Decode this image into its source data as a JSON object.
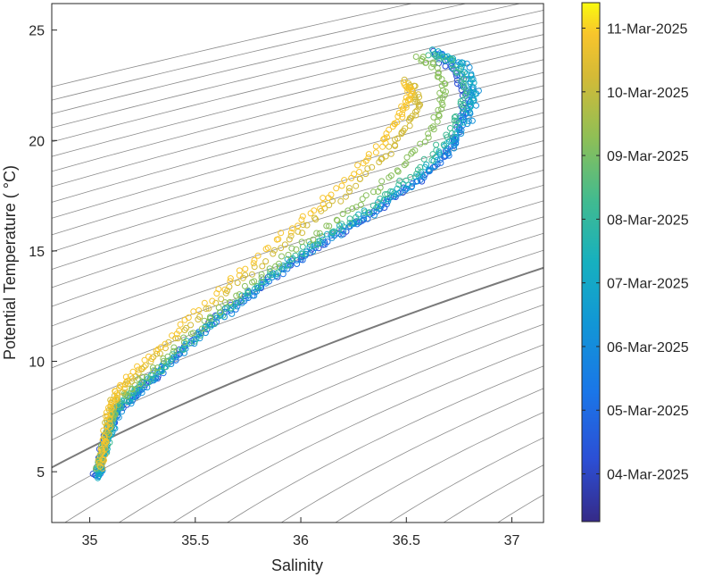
{
  "chart_data": {
    "type": "scatter",
    "xlabel": "Salinity",
    "ylabel": "Potential Temperature ( °C)",
    "xlim": [
      34.82,
      37.15
    ],
    "ylim": [
      2.7,
      26.2
    ],
    "xticks": [
      35,
      35.5,
      36,
      36.5,
      37
    ],
    "xtick_labels": [
      "35",
      "35.5",
      "36",
      "36.5",
      "37"
    ],
    "yticks": [
      5,
      10,
      15,
      20,
      25
    ],
    "ytick_labels": [
      "5",
      "10",
      "15",
      "20",
      "25"
    ],
    "grid": false,
    "marker": "open-circle",
    "background_contours": "density isopycnals (thin gray curves), one highlighted darker line",
    "colormap": "parula (dark blue → cyan → green → yellow)",
    "colorbar": {
      "range": [
        "03-Mar-2025 (approx.)",
        "11-Mar-2025 (approx.)"
      ],
      "labels": [
        "04-Mar-2025",
        "05-Mar-2025",
        "06-Mar-2025",
        "07-Mar-2025",
        "08-Mar-2025",
        "09-Mar-2025",
        "10-Mar-2025",
        "11-Mar-2025"
      ],
      "label_positions_days": [
        1,
        2,
        3,
        4,
        5,
        6,
        7,
        8
      ],
      "min_day": 0.25,
      "max_day": 8.4
    },
    "profile_curves": [
      {
        "date_day": 1.2,
        "points": [
          [
            35.03,
            4.8
          ],
          [
            35.05,
            5.8
          ],
          [
            35.08,
            6.8
          ],
          [
            35.12,
            7.6
          ],
          [
            35.2,
            8.4
          ],
          [
            35.32,
            9.4
          ],
          [
            35.5,
            11.2
          ],
          [
            35.7,
            12.6
          ],
          [
            35.9,
            14.1
          ],
          [
            36.1,
            15.3
          ],
          [
            36.3,
            16.5
          ],
          [
            36.5,
            17.8
          ],
          [
            36.68,
            19.2
          ],
          [
            36.75,
            20.5
          ],
          [
            36.78,
            21.8
          ],
          [
            36.73,
            23.0
          ],
          [
            36.6,
            24.1
          ]
        ]
      },
      {
        "date_day": 2.2,
        "points": [
          [
            35.04,
            4.9
          ],
          [
            35.06,
            5.9
          ],
          [
            35.09,
            6.9
          ],
          [
            35.13,
            7.8
          ],
          [
            35.22,
            8.6
          ],
          [
            35.35,
            9.7
          ],
          [
            35.55,
            11.5
          ],
          [
            35.75,
            12.9
          ],
          [
            35.95,
            14.4
          ],
          [
            36.15,
            15.6
          ],
          [
            36.35,
            16.8
          ],
          [
            36.55,
            18.1
          ],
          [
            36.7,
            19.4
          ],
          [
            36.77,
            20.7
          ],
          [
            36.8,
            22.0
          ],
          [
            36.75,
            23.2
          ],
          [
            36.62,
            24.1
          ]
        ]
      },
      {
        "date_day": 3.2,
        "points": [
          [
            35.04,
            4.8
          ],
          [
            35.06,
            5.7
          ],
          [
            35.1,
            6.8
          ],
          [
            35.15,
            7.9
          ],
          [
            35.25,
            8.8
          ],
          [
            35.38,
            9.9
          ],
          [
            35.57,
            11.6
          ],
          [
            35.78,
            13.1
          ],
          [
            35.98,
            14.6
          ],
          [
            36.18,
            15.8
          ],
          [
            36.38,
            17.0
          ],
          [
            36.57,
            18.3
          ],
          [
            36.72,
            19.7
          ],
          [
            36.8,
            21.0
          ],
          [
            36.83,
            22.2
          ],
          [
            36.78,
            23.4
          ],
          [
            36.65,
            24.0
          ]
        ]
      },
      {
        "date_day": 4.2,
        "points": [
          [
            35.03,
            4.7
          ],
          [
            35.06,
            5.6
          ],
          [
            35.09,
            6.7
          ],
          [
            35.12,
            7.8
          ],
          [
            35.22,
            8.7
          ],
          [
            35.36,
            9.9
          ],
          [
            35.56,
            11.7
          ],
          [
            35.77,
            13.2
          ],
          [
            35.97,
            14.7
          ],
          [
            36.17,
            15.9
          ],
          [
            36.37,
            17.1
          ],
          [
            36.55,
            18.4
          ],
          [
            36.7,
            19.8
          ],
          [
            36.78,
            21.2
          ],
          [
            36.82,
            22.4
          ],
          [
            36.76,
            23.5
          ],
          [
            36.62,
            24.1
          ]
        ]
      },
      {
        "date_day": 5.2,
        "points": [
          [
            35.04,
            5.0
          ],
          [
            35.07,
            6.0
          ],
          [
            35.1,
            7.2
          ],
          [
            35.14,
            8.1
          ],
          [
            35.24,
            8.9
          ],
          [
            35.38,
            10.0
          ],
          [
            35.58,
            11.8
          ],
          [
            35.78,
            13.3
          ],
          [
            35.98,
            14.8
          ],
          [
            36.18,
            16.0
          ],
          [
            36.38,
            17.3
          ],
          [
            36.56,
            18.7
          ],
          [
            36.7,
            20.2
          ],
          [
            36.76,
            21.5
          ],
          [
            36.78,
            22.6
          ],
          [
            36.72,
            23.6
          ],
          [
            36.6,
            24.0
          ]
        ]
      },
      {
        "date_day": 6.2,
        "points": [
          [
            35.04,
            5.1
          ],
          [
            35.07,
            6.2
          ],
          [
            35.1,
            7.4
          ],
          [
            35.13,
            8.2
          ],
          [
            35.23,
            9.0
          ],
          [
            35.37,
            10.2
          ],
          [
            35.56,
            11.9
          ],
          [
            35.76,
            13.5
          ],
          [
            35.96,
            15.0
          ],
          [
            36.16,
            16.3
          ],
          [
            36.34,
            17.6
          ],
          [
            36.5,
            19.0
          ],
          [
            36.62,
            20.4
          ],
          [
            36.66,
            21.6
          ],
          [
            36.68,
            22.6
          ],
          [
            36.62,
            23.4
          ],
          [
            36.55,
            23.8
          ]
        ]
      },
      {
        "date_day": 7.2,
        "points": [
          [
            35.05,
            5.2
          ],
          [
            35.07,
            6.3
          ],
          [
            35.09,
            7.6
          ],
          [
            35.12,
            8.4
          ],
          [
            35.2,
            9.2
          ],
          [
            35.34,
            10.4
          ],
          [
            35.52,
            12.1
          ],
          [
            35.72,
            13.7
          ],
          [
            35.92,
            15.3
          ],
          [
            36.1,
            16.7
          ],
          [
            36.28,
            18.2
          ],
          [
            36.42,
            19.5
          ],
          [
            36.5,
            20.6
          ],
          [
            36.55,
            21.5
          ],
          [
            36.55,
            22.2
          ],
          [
            36.5,
            22.8
          ]
        ]
      },
      {
        "date_day": 7.9,
        "points": [
          [
            35.05,
            5.3
          ],
          [
            35.07,
            6.4
          ],
          [
            35.09,
            7.7
          ],
          [
            35.12,
            8.5
          ],
          [
            35.19,
            9.3
          ],
          [
            35.32,
            10.5
          ],
          [
            35.5,
            12.2
          ],
          [
            35.7,
            13.9
          ],
          [
            35.9,
            15.6
          ],
          [
            36.08,
            17.0
          ],
          [
            36.25,
            18.5
          ],
          [
            36.38,
            19.8
          ],
          [
            36.45,
            20.8
          ],
          [
            36.5,
            21.6
          ],
          [
            36.52,
            22.2
          ],
          [
            36.5,
            22.6
          ]
        ]
      }
    ]
  }
}
